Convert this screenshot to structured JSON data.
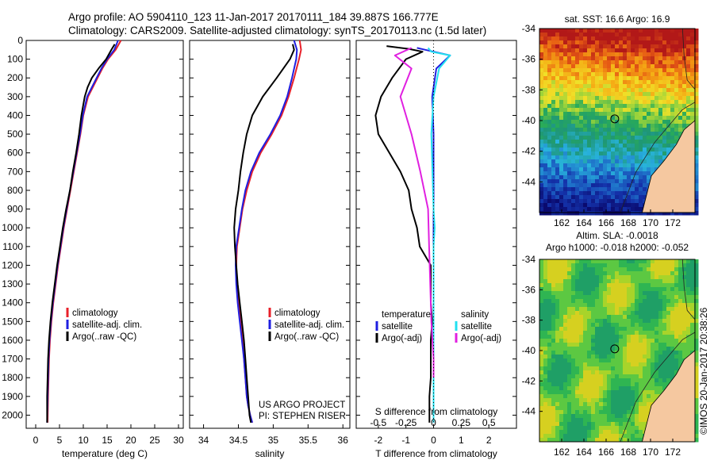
{
  "header": {
    "line1": "Argo profile: AO 5904110_123 11-Jan-2017 20170111_184 39.887S 166.777E",
    "line2": "Climatology: CARS2009. Satellite-adjusted climatology: synTS_20170113.nc (1.5d later)"
  },
  "colors": {
    "climatology": "#e8202a",
    "satellite": "#1f1fe0",
    "argo": "#000000",
    "sal_satellite": "#22e0f0",
    "sal_argo": "#e020e0",
    "land": "#f5c8a0"
  },
  "chart_data": [
    {
      "type": "line",
      "panel": "temperature",
      "xlabel": "temperature (deg C)",
      "ylabel": "",
      "xlim": [
        -2,
        31
      ],
      "ylim": [
        2070,
        0
      ],
      "xticks": [
        0,
        5,
        10,
        15,
        20,
        25,
        30
      ],
      "yticks": [
        0,
        100,
        200,
        300,
        400,
        500,
        600,
        700,
        800,
        900,
        1000,
        1100,
        1200,
        1300,
        1400,
        1500,
        1600,
        1700,
        1800,
        1900,
        2000
      ],
      "legend": [
        "climatology",
        "satellite-adj. clim.",
        "Argo(..raw -QC)"
      ],
      "series": [
        {
          "name": "climatology",
          "color": "#e8202a",
          "x": [
            17.9,
            16.8,
            15.2,
            14.0,
            13.0,
            12.0,
            11.0,
            10.0,
            9.4,
            8.7,
            8.0,
            7.3,
            6.6,
            5.9,
            5.3,
            4.7,
            4.2,
            3.7,
            3.3,
            3.0,
            2.8,
            2.7,
            2.6,
            2.5
          ],
          "y": [
            0,
            50,
            100,
            150,
            200,
            250,
            300,
            400,
            500,
            600,
            700,
            800,
            900,
            1000,
            1100,
            1200,
            1300,
            1400,
            1500,
            1600,
            1700,
            1800,
            1900,
            2040
          ]
        },
        {
          "name": "satellite-adj. clim.",
          "color": "#1f1fe0",
          "x": [
            17.3,
            16.5,
            15.0,
            13.8,
            12.8,
            11.8,
            10.8,
            9.9,
            9.3,
            8.6,
            7.9,
            7.2,
            6.5,
            5.8,
            5.2,
            4.6,
            4.1,
            3.6,
            3.2,
            2.9,
            2.7,
            2.6,
            2.5,
            2.4
          ],
          "y": [
            0,
            50,
            100,
            150,
            200,
            250,
            300,
            400,
            500,
            600,
            700,
            800,
            900,
            1000,
            1100,
            1200,
            1300,
            1400,
            1500,
            1600,
            1700,
            1800,
            1900,
            2040
          ]
        },
        {
          "name": "Argo(..raw -QC)",
          "color": "#000000",
          "x": [
            16.6,
            15.9,
            14.8,
            13.2,
            11.8,
            10.9,
            10.3,
            9.6,
            9.1,
            8.5,
            7.8,
            7.2,
            6.4,
            5.7,
            5.1,
            4.5,
            4.0,
            3.5,
            3.1,
            2.8,
            2.6,
            2.5,
            2.4,
            2.4
          ],
          "y": [
            20,
            50,
            100,
            150,
            200,
            250,
            300,
            400,
            500,
            600,
            700,
            800,
            900,
            1000,
            1100,
            1200,
            1300,
            1400,
            1500,
            1600,
            1700,
            1800,
            1900,
            2040
          ]
        }
      ]
    },
    {
      "type": "line",
      "panel": "salinity",
      "xlabel": "salinity",
      "ylabel": "",
      "xlim": [
        33.8,
        36.1
      ],
      "ylim": [
        2070,
        0
      ],
      "xticks": [
        34,
        34.5,
        35,
        35.5,
        36
      ],
      "xtick_labels": [
        "34",
        "34.5",
        "35",
        "35.5",
        "36"
      ],
      "legend": [
        "climatology",
        "satellite-adj. clim.",
        "Argo(..raw -QC)"
      ],
      "annotation": [
        "US ARGO PROJECT",
        "PI: STEPHEN RISER"
      ],
      "series": [
        {
          "name": "climatology",
          "color": "#e8202a",
          "x": [
            35.38,
            35.4,
            35.37,
            35.3,
            35.22,
            35.12,
            34.98,
            34.82,
            34.7,
            34.62,
            34.56,
            34.52,
            34.48,
            34.47,
            34.48,
            34.5,
            34.53,
            34.56,
            34.58,
            34.6,
            34.62,
            34.64,
            34.67,
            34.7
          ],
          "y": [
            0,
            50,
            100,
            200,
            300,
            400,
            500,
            600,
            700,
            800,
            900,
            1000,
            1100,
            1200,
            1300,
            1400,
            1500,
            1600,
            1700,
            1800,
            1900,
            1950,
            2000,
            2040
          ]
        },
        {
          "name": "satellite-adj. clim.",
          "color": "#1f1fe0",
          "x": [
            35.3,
            35.34,
            35.33,
            35.27,
            35.2,
            35.1,
            34.96,
            34.8,
            34.68,
            34.6,
            34.55,
            34.51,
            34.47,
            34.46,
            34.47,
            34.49,
            34.52,
            34.55,
            34.58,
            34.6,
            34.62,
            34.64,
            34.67,
            34.7
          ],
          "y": [
            0,
            50,
            100,
            200,
            300,
            400,
            500,
            600,
            700,
            800,
            900,
            1000,
            1100,
            1200,
            1300,
            1400,
            1500,
            1600,
            1700,
            1800,
            1900,
            1950,
            2000,
            2040
          ]
        },
        {
          "name": "Argo(..raw -QC)",
          "color": "#000000",
          "x": [
            35.28,
            35.3,
            35.24,
            35.05,
            34.85,
            34.7,
            34.62,
            34.57,
            34.53,
            34.5,
            34.46,
            34.44,
            34.45,
            34.47,
            34.49,
            34.52,
            34.55,
            34.58,
            34.6,
            34.62,
            34.64,
            34.66,
            34.68
          ],
          "y": [
            20,
            50,
            100,
            200,
            300,
            400,
            500,
            600,
            700,
            800,
            900,
            1000,
            1100,
            1200,
            1300,
            1400,
            1500,
            1600,
            1700,
            1800,
            1900,
            2000,
            2040
          ]
        }
      ]
    },
    {
      "type": "line",
      "panel": "difference",
      "xlabel": "T difference from climatology",
      "top_label": "S difference from climatology",
      "xlim": [
        -2.8,
        3
      ],
      "ylim": [
        2070,
        0
      ],
      "xticks": [
        -2,
        -1,
        0,
        1,
        2
      ],
      "top_xticks": [
        -0.5,
        -0.25,
        0,
        0.25,
        0.5
      ],
      "top_xtick_labels": [
        "-0.5",
        "-0.25",
        "0",
        "0.25",
        "0.5"
      ],
      "legend_temperature": [
        "temperature",
        "satellite",
        "Argo(-adj)"
      ],
      "legend_salinity": [
        "salinity",
        "satellite",
        "Argo(-adj)"
      ],
      "series": [
        {
          "name": "satellite",
          "group": "temperature",
          "color": "#1f1fe0",
          "x": [
            -0.6,
            -0.3,
            0.6,
            0.1,
            -0.05,
            0.0,
            0.0,
            0.0,
            0.0,
            0.0,
            0.0,
            0.0,
            0.0,
            0.0,
            0.0,
            0.0,
            0.0,
            0.0,
            0.0,
            0.0
          ],
          "y": [
            40,
            50,
            80,
            150,
            300,
            500,
            700,
            900,
            1000,
            1100,
            1200,
            1300,
            1400,
            1500,
            1600,
            1700,
            1800,
            1900,
            2000,
            2040
          ]
        },
        {
          "name": "Argo(-adj)",
          "group": "temperature",
          "color": "#000000",
          "x": [
            -1.7,
            -0.9,
            -0.4,
            -1.0,
            -1.5,
            -1.9,
            -2.1,
            -2.0,
            -1.6,
            -1.2,
            -0.9,
            -0.8,
            -0.6,
            -0.5,
            -0.1,
            -0.1,
            -0.05,
            -0.1,
            -0.1,
            -0.1,
            -0.15,
            -0.15
          ],
          "y": [
            30,
            45,
            60,
            100,
            200,
            300,
            400,
            500,
            600,
            700,
            800,
            900,
            1000,
            1100,
            1200,
            1400,
            1500,
            1600,
            1700,
            1800,
            1900,
            2040
          ]
        },
        {
          "name": "satellite",
          "group": "salinity",
          "color": "#22e0f0",
          "x": [
            -0.05,
            -0.02,
            0.15,
            0.05,
            0.0,
            -0.02,
            -0.01,
            0.0,
            0.01,
            0.0,
            0.0,
            0.0,
            0.0,
            0.0,
            0.0,
            0.0,
            0.0
          ],
          "y": [
            40,
            60,
            80,
            150,
            300,
            500,
            700,
            900,
            1000,
            1100,
            1300,
            1500,
            1600,
            1700,
            1800,
            1900,
            2040
          ]
        },
        {
          "name": "Argo(-adj)",
          "group": "salinity",
          "color": "#e020e0",
          "x": [
            -0.2,
            -0.35,
            -0.2,
            -0.3,
            -0.2,
            -0.12,
            -0.05,
            -0.04,
            -0.03,
            -0.02,
            -0.01,
            0.0,
            0.0
          ],
          "y": [
            40,
            80,
            150,
            300,
            500,
            700,
            900,
            1100,
            1300,
            1500,
            1600,
            1700,
            1800
          ]
        }
      ]
    },
    {
      "type": "heatmap",
      "panel": "sst_map",
      "title": "sat. SST: 16.6 Argo: 16.9",
      "xticks": [
        162,
        164,
        166,
        168,
        170,
        172
      ],
      "yticks": [
        -34,
        -36,
        -38,
        -40,
        -42,
        -44
      ],
      "xlim": [
        160,
        174
      ],
      "ylim": [
        -46,
        -34
      ],
      "float_position": {
        "lon": 166.777,
        "lat": -39.887
      }
    },
    {
      "type": "heatmap",
      "panel": "sla_map",
      "title_lines": [
        "Altim. SLA: -0.0018",
        "Argo h1000: -0.018 h2000: -0.052"
      ],
      "xticks": [
        162,
        164,
        166,
        168,
        170,
        172
      ],
      "yticks": [
        -34,
        -36,
        -38,
        -40,
        -42,
        -44
      ],
      "xlim": [
        160,
        174
      ],
      "ylim": [
        -46,
        -34
      ],
      "float_position": {
        "lon": 166.777,
        "lat": -39.887
      }
    }
  ],
  "footer_stamp": "©IMOS 20-Jan-2017 20:38:26"
}
